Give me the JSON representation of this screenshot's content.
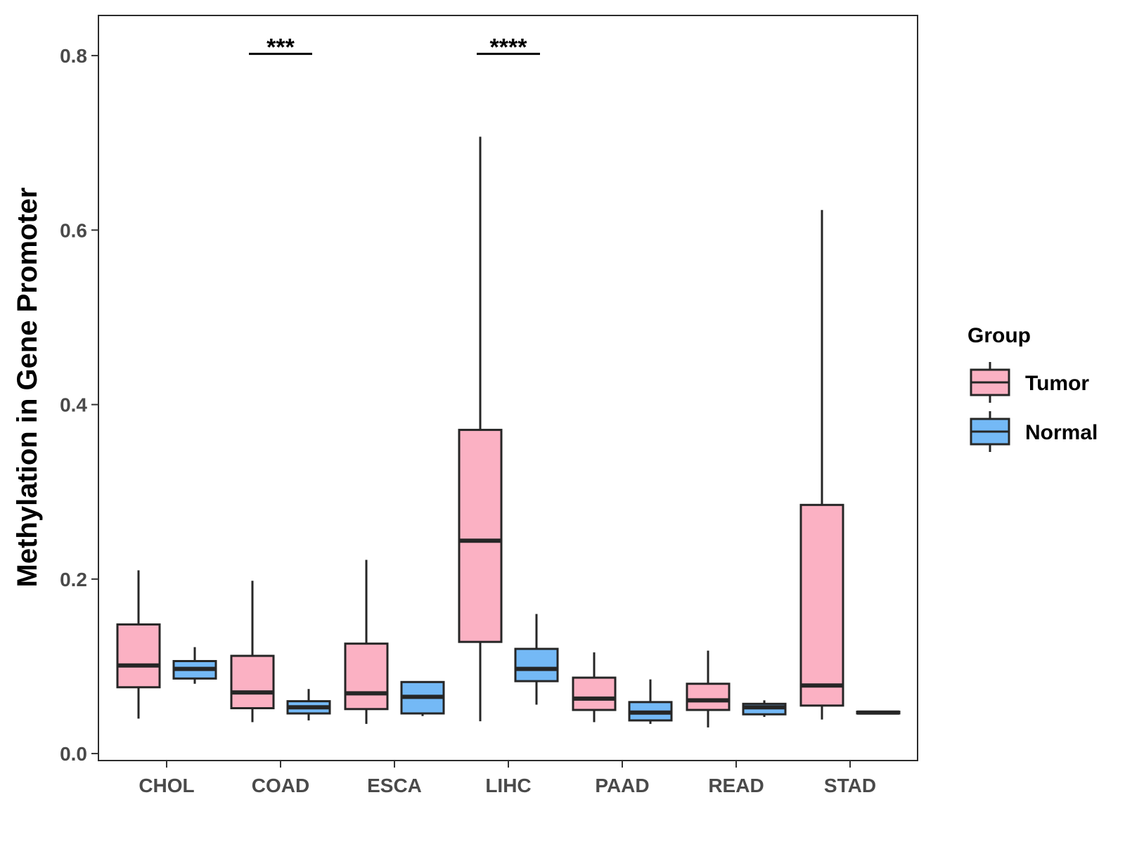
{
  "chart_data": {
    "type": "boxplot",
    "title": "",
    "xlabel": "",
    "ylabel": "Methylation in Gene Promoter",
    "ylim": [
      -0.008,
      0.846
    ],
    "y_ticks": [
      0.0,
      0.2,
      0.4,
      0.6,
      0.8
    ],
    "y_tick_labels": [
      "0.0",
      "0.2",
      "0.4",
      "0.6",
      "0.8"
    ],
    "grid": false,
    "legend_position": "right",
    "categories": [
      "CHOL",
      "COAD",
      "ESCA",
      "LIHC",
      "PAAD",
      "READ",
      "STAD"
    ],
    "legend": {
      "title": "Group",
      "items": [
        {
          "name": "Tumor",
          "color": "#fbb1c3"
        },
        {
          "name": "Normal",
          "color": "#74b9f6"
        }
      ]
    },
    "series": [
      {
        "name": "Tumor",
        "color": "#fbb1c3",
        "boxes": [
          {
            "category": "CHOL",
            "min": 0.04,
            "q1": 0.076,
            "median": 0.101,
            "q3": 0.148,
            "max": 0.21
          },
          {
            "category": "COAD",
            "min": 0.036,
            "q1": 0.052,
            "median": 0.07,
            "q3": 0.112,
            "max": 0.198
          },
          {
            "category": "ESCA",
            "min": 0.034,
            "q1": 0.051,
            "median": 0.069,
            "q3": 0.126,
            "max": 0.222
          },
          {
            "category": "LIHC",
            "min": 0.037,
            "q1": 0.128,
            "median": 0.244,
            "q3": 0.371,
            "max": 0.707
          },
          {
            "category": "PAAD",
            "min": 0.036,
            "q1": 0.05,
            "median": 0.063,
            "q3": 0.087,
            "max": 0.116
          },
          {
            "category": "READ",
            "min": 0.03,
            "q1": 0.05,
            "median": 0.061,
            "q3": 0.08,
            "max": 0.118
          },
          {
            "category": "STAD",
            "min": 0.039,
            "q1": 0.055,
            "median": 0.078,
            "q3": 0.285,
            "max": 0.623
          }
        ]
      },
      {
        "name": "Normal",
        "color": "#74b9f6",
        "boxes": [
          {
            "category": "CHOL",
            "min": 0.08,
            "q1": 0.086,
            "median": 0.097,
            "q3": 0.106,
            "max": 0.122
          },
          {
            "category": "COAD",
            "min": 0.038,
            "q1": 0.046,
            "median": 0.053,
            "q3": 0.06,
            "max": 0.074
          },
          {
            "category": "ESCA",
            "min": 0.043,
            "q1": 0.046,
            "median": 0.065,
            "q3": 0.082,
            "max": 0.082
          },
          {
            "category": "LIHC",
            "min": 0.056,
            "q1": 0.083,
            "median": 0.097,
            "q3": 0.12,
            "max": 0.16
          },
          {
            "category": "PAAD",
            "min": 0.034,
            "q1": 0.038,
            "median": 0.047,
            "q3": 0.059,
            "max": 0.085
          },
          {
            "category": "READ",
            "min": 0.042,
            "q1": 0.045,
            "median": 0.053,
            "q3": 0.057,
            "max": 0.061
          },
          {
            "category": "STAD",
            "min": 0.046,
            "q1": 0.046,
            "median": 0.047,
            "q3": 0.048,
            "max": 0.048
          }
        ]
      }
    ],
    "annotations": [
      {
        "category": "COAD",
        "text": "***",
        "y": 0.802
      },
      {
        "category": "LIHC",
        "text": "****",
        "y": 0.802
      }
    ]
  }
}
